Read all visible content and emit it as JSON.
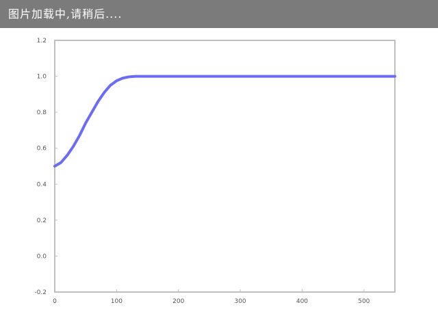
{
  "loading": {
    "text": "图片加载中,请稍后...."
  },
  "colors": {
    "line": "#6b6bf5",
    "axis": "#bfbfbf",
    "tick_text": "#555555",
    "banner_bg": "#7b7b7b"
  },
  "chart_data": {
    "type": "line",
    "title": "",
    "xlabel": "",
    "ylabel": "",
    "xlim": [
      0,
      550
    ],
    "ylim": [
      -0.2,
      1.2
    ],
    "xticks": [
      0,
      100,
      200,
      300,
      400,
      500
    ],
    "xtick_labels": [
      "0",
      "100",
      "200",
      "300",
      "400",
      "500"
    ],
    "yticks": [
      -0.2,
      0.0,
      0.2,
      0.4,
      0.6,
      0.8,
      1.0,
      1.2
    ],
    "ytick_labels": [
      "-0.2",
      "0.0",
      "0.2",
      "0.4",
      "0.6",
      "0.8",
      "1.0",
      "1.2"
    ],
    "grid": false,
    "series": [
      {
        "x": [
          0,
          10,
          20,
          30,
          40,
          50,
          60,
          70,
          80,
          90,
          100,
          110,
          120,
          130,
          140,
          160,
          200,
          300,
          400,
          500,
          550
        ],
        "y": [
          0.5,
          0.52,
          0.56,
          0.61,
          0.67,
          0.74,
          0.8,
          0.86,
          0.91,
          0.95,
          0.975,
          0.99,
          0.997,
          1.0,
          1.0,
          1.0,
          1.0,
          1.0,
          1.0,
          1.0,
          1.0
        ]
      }
    ]
  }
}
